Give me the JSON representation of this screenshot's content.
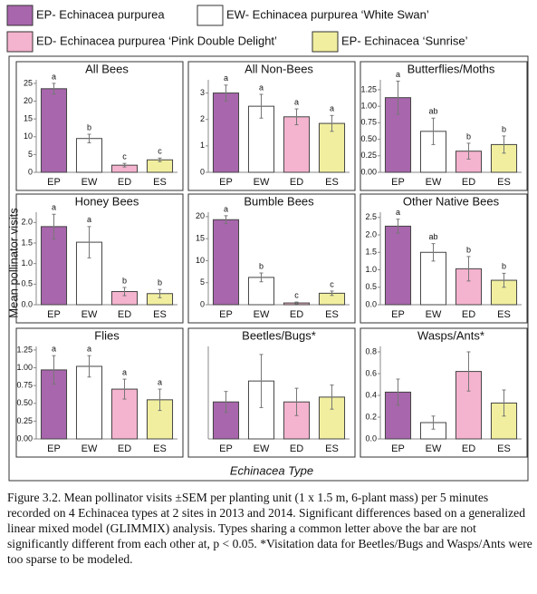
{
  "legend": [
    {
      "name": "EP- Echinacea purpurea",
      "color": "#a866ac"
    },
    {
      "name": "EW- Echinacea purpurea ‘White Swan’",
      "color": "#ffffff"
    },
    {
      "name": "ED- Echinacea purpurea ‘Pink Double Delight’",
      "color": "#f4b3ce"
    },
    {
      "name": "EP- Echinacea ‘Sunrise’",
      "color": "#f1ef9f"
    }
  ],
  "y_axis_label": "Mean pollinator visits",
  "x_axis_label": "Echinacea Type",
  "caption": "Figure 3.2. Mean pollinator visits ±SEM per planting unit (1 x 1.5 m, 6-plant mass) per 5 minutes recorded on 4 Echinacea types at 2 sites in 2013 and 2014. Significant differences based on a generalized linear mixed model (GLIMMIX) analysis. Types sharing a common letter above the bar are not significantly different from each other at, p < 0.05. *Visitation data for Beetles/Bugs and Wasps/Ants were too sparse to be modeled.",
  "chart_data": [
    {
      "type": "bar",
      "title": "All Bees",
      "categories": [
        "EP",
        "EW",
        "ED",
        "ES"
      ],
      "values": [
        23.5,
        9.5,
        2,
        3.5
      ],
      "errors": [
        1.5,
        1.2,
        0.5,
        0.5
      ],
      "letters": [
        "a",
        "b",
        "c",
        "c"
      ],
      "ylim": [
        0,
        26
      ],
      "yticks": [
        0,
        5,
        10,
        15,
        20,
        25
      ]
    },
    {
      "type": "bar",
      "title": "All Non-Bees",
      "categories": [
        "EP",
        "EW",
        "ED",
        "ES"
      ],
      "values": [
        3.0,
        2.5,
        2.1,
        1.85
      ],
      "errors": [
        0.3,
        0.45,
        0.3,
        0.3
      ],
      "letters": [
        "a",
        "a",
        "a",
        "a"
      ],
      "ylim": [
        0,
        3.5
      ],
      "yticks": [
        0,
        1,
        2,
        3
      ]
    },
    {
      "type": "bar",
      "title": "Butterflies/Moths",
      "categories": [
        "EP",
        "EW",
        "ED",
        "ES"
      ],
      "values": [
        1.13,
        0.62,
        0.32,
        0.42
      ],
      "errors": [
        0.25,
        0.2,
        0.12,
        0.13
      ],
      "letters": [
        "a",
        "ab",
        "b",
        "b"
      ],
      "ylim": [
        0,
        1.4
      ],
      "yticks": [
        {
          "value": 0,
          "label": "0.00"
        },
        {
          "value": 0.25,
          "label": "0.25"
        },
        {
          "value": 0.5,
          "label": "0.50"
        },
        {
          "value": 0.75,
          "label": "0.75"
        },
        {
          "value": 1,
          "label": "1.00"
        },
        {
          "value": 1.25,
          "label": "1.25"
        }
      ]
    },
    {
      "type": "bar",
      "title": "Honey Bees",
      "categories": [
        "EP",
        "EW",
        "ED",
        "ES"
      ],
      "values": [
        1.9,
        1.52,
        0.32,
        0.27
      ],
      "errors": [
        0.3,
        0.38,
        0.1,
        0.1
      ],
      "letters": [
        "a",
        "a",
        "b",
        "b"
      ],
      "ylim": [
        0,
        2.25
      ],
      "yticks": [
        {
          "value": 0,
          "label": "0.0"
        },
        0.5,
        {
          "value": 1,
          "label": "1.0"
        },
        1.5,
        {
          "value": 2,
          "label": "2.0"
        }
      ]
    },
    {
      "type": "bar",
      "title": "Bumble Bees",
      "categories": [
        "EP",
        "EW",
        "ED",
        "ES"
      ],
      "values": [
        19.3,
        6.2,
        0.4,
        2.6
      ],
      "errors": [
        0.9,
        1.0,
        0.2,
        0.5
      ],
      "letters": [
        "a",
        "b",
        "c",
        "c"
      ],
      "ylim": [
        0,
        21
      ],
      "yticks": [
        0,
        5,
        10,
        15,
        20
      ]
    },
    {
      "type": "bar",
      "title": "Other Native Bees",
      "categories": [
        "EP",
        "EW",
        "ED",
        "ES"
      ],
      "values": [
        2.25,
        1.5,
        1.03,
        0.7
      ],
      "errors": [
        0.2,
        0.25,
        0.35,
        0.2
      ],
      "letters": [
        "a",
        "ab",
        "b",
        "b"
      ],
      "ylim": [
        0,
        2.65
      ],
      "yticks": [
        {
          "value": 0,
          "label": "0.0"
        },
        0.5,
        {
          "value": 1,
          "label": "1.0"
        },
        1.5,
        {
          "value": 2,
          "label": "2.0"
        },
        2.5
      ]
    },
    {
      "type": "bar",
      "title": "Flies",
      "categories": [
        "EP",
        "EW",
        "ED",
        "ES"
      ],
      "values": [
        0.97,
        1.02,
        0.7,
        0.55
      ],
      "errors": [
        0.2,
        0.15,
        0.14,
        0.15
      ],
      "letters": [
        "a",
        "a",
        "a",
        "a"
      ],
      "ylim": [
        0,
        1.3
      ],
      "yticks": [
        {
          "value": 0,
          "label": "0.00"
        },
        {
          "value": 0.25,
          "label": "0.25"
        },
        {
          "value": 0.5,
          "label": "0.50"
        },
        {
          "value": 0.75,
          "label": "0.75"
        },
        {
          "value": 1,
          "label": "1.00"
        },
        {
          "value": 1.25,
          "label": "1.25"
        }
      ]
    },
    {
      "type": "bar",
      "title": "Beetles/Bugs*",
      "categories": [
        "EP",
        "EW",
        "ED",
        "ES"
      ],
      "values": [
        0.46,
        0.72,
        0.46,
        0.52
      ],
      "errors": [
        0.13,
        0.33,
        0.17,
        0.15
      ],
      "ylim": [
        0,
        1.15
      ]
    },
    {
      "type": "bar",
      "title": "Wasps/Ants*",
      "categories": [
        "EP",
        "EW",
        "ED",
        "ES"
      ],
      "values": [
        0.43,
        0.15,
        0.62,
        0.33
      ],
      "errors": [
        0.12,
        0.06,
        0.18,
        0.12
      ],
      "ylim": [
        0,
        0.85
      ],
      "yticks": [
        {
          "value": 0,
          "label": "0.0"
        },
        0.2,
        0.4,
        0.6,
        0.8
      ]
    }
  ]
}
